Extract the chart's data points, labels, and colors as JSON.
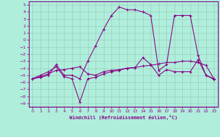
{
  "xlabel": "Windchill (Refroidissement éolien,°C)",
  "bg_color": "#b0eedc",
  "line_color": "#880088",
  "grid_color": "#99ccbb",
  "xlim": [
    -0.5,
    23.5
  ],
  "ylim": [
    -9.5,
    5.5
  ],
  "xticks": [
    0,
    1,
    2,
    3,
    4,
    5,
    6,
    7,
    8,
    9,
    10,
    11,
    12,
    13,
    14,
    15,
    16,
    17,
    18,
    19,
    20,
    21,
    22,
    23
  ],
  "yticks": [
    5,
    4,
    3,
    2,
    1,
    0,
    -1,
    -2,
    -3,
    -4,
    -5,
    -6,
    -7,
    -8,
    -9
  ],
  "line1_x": [
    0,
    1,
    2,
    3,
    4,
    5,
    6,
    7,
    8,
    9,
    10,
    11,
    12,
    13,
    14,
    15,
    16,
    17,
    18,
    19,
    20,
    21,
    22,
    23
  ],
  "line1_y": [
    -5.5,
    -5.2,
    -4.8,
    -4.3,
    -4.2,
    -4.0,
    -3.8,
    -4.8,
    -5.0,
    -4.5,
    -4.3,
    -4.2,
    -4.0,
    -3.9,
    -3.7,
    -3.6,
    -3.4,
    -3.2,
    -3.2,
    -3.0,
    -3.0,
    -3.2,
    -3.6,
    -5.5
  ],
  "line2_x": [
    0,
    1,
    2,
    3,
    4,
    5,
    6,
    7,
    8,
    9,
    10,
    11,
    12,
    13,
    14,
    15,
    16,
    17,
    18,
    19,
    20,
    21,
    22,
    23
  ],
  "line2_y": [
    -5.5,
    -5.0,
    -4.5,
    -3.8,
    -5.2,
    -5.5,
    -8.8,
    -5.5,
    -5.3,
    -4.8,
    -4.5,
    -4.3,
    -4.0,
    -3.9,
    -2.5,
    -3.5,
    -5.0,
    -4.2,
    -4.5,
    -4.5,
    -4.5,
    -2.8,
    -5.0,
    -5.6
  ],
  "line3_x": [
    0,
    1,
    2,
    3,
    4,
    5,
    6,
    7,
    8,
    9,
    10,
    11,
    12,
    13,
    14,
    15,
    16,
    17,
    18,
    19,
    20,
    21,
    22,
    23
  ],
  "line3_y": [
    -5.5,
    -5.3,
    -5.0,
    -3.5,
    -5.0,
    -5.0,
    -5.5,
    -3.0,
    -0.8,
    1.5,
    3.5,
    4.7,
    4.3,
    4.3,
    4.0,
    3.5,
    -4.3,
    -3.5,
    3.5,
    3.5,
    3.5,
    -2.2,
    -5.0,
    -5.5
  ]
}
